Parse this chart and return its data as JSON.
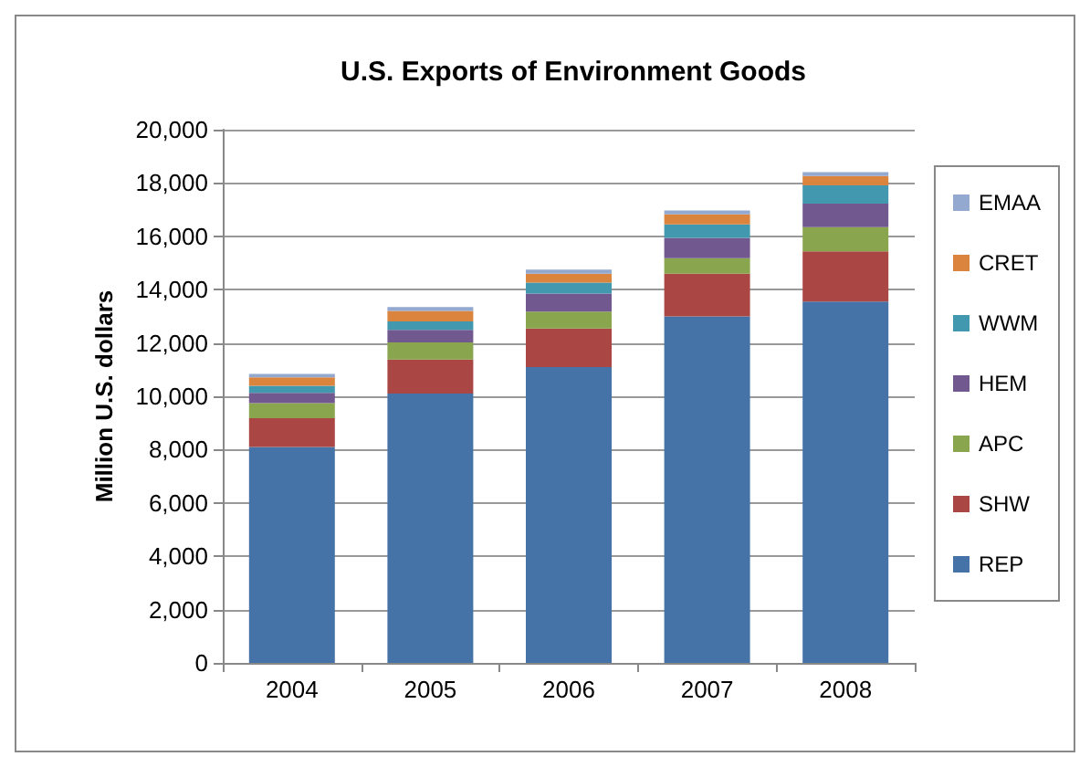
{
  "chart_data": {
    "type": "bar",
    "title": "U.S. Exports of Environment Goods",
    "ylabel": "Million U.S. dollars",
    "categories": [
      "2004",
      "2005",
      "2006",
      "2007",
      "2008"
    ],
    "stacked": true,
    "grid": "y",
    "legend": "right",
    "ylim": [
      0,
      20000
    ],
    "yticks": [
      {
        "value": 0,
        "label": "0"
      },
      {
        "value": 2000,
        "label": "2,000"
      },
      {
        "value": 4000,
        "label": "4,000"
      },
      {
        "value": 6000,
        "label": "6,000"
      },
      {
        "value": 8000,
        "label": "8,000"
      },
      {
        "value": 10000,
        "label": "10,000"
      },
      {
        "value": 12000,
        "label": "12,000"
      },
      {
        "value": 14000,
        "label": "14,000"
      },
      {
        "value": 16000,
        "label": "16,000"
      },
      {
        "value": 18000,
        "label": "18,000"
      },
      {
        "value": 20000,
        "label": "20,000"
      }
    ],
    "series": [
      {
        "name": "REP",
        "color": "#4572a7",
        "values": [
          8100,
          10100,
          11100,
          13000,
          13550
        ]
      },
      {
        "name": "SHW",
        "color": "#aa4643",
        "values": [
          1080,
          1280,
          1440,
          1600,
          1890
        ]
      },
      {
        "name": "APC",
        "color": "#89a54e",
        "values": [
          560,
          640,
          640,
          580,
          900
        ]
      },
      {
        "name": "HEM",
        "color": "#71588f",
        "values": [
          390,
          470,
          670,
          760,
          890
        ]
      },
      {
        "name": "WWM",
        "color": "#4198af",
        "values": [
          260,
          320,
          410,
          510,
          680
        ]
      },
      {
        "name": "CRET",
        "color": "#db843d",
        "values": [
          320,
          390,
          340,
          370,
          350
        ]
      },
      {
        "name": "EMAA",
        "color": "#93a9cf",
        "values": [
          130,
          150,
          150,
          150,
          150
        ]
      }
    ]
  }
}
